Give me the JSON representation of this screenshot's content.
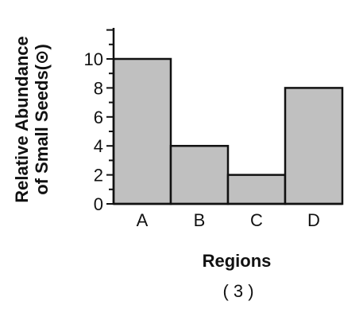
{
  "chart_data": {
    "type": "bar",
    "title": "",
    "xlabel": "Regions",
    "ylabel_lines": [
      "Relative Abundance",
      "of Small Seeds(⊙)"
    ],
    "categories": [
      "A",
      "B",
      "C",
      "D"
    ],
    "values": [
      10,
      4,
      2,
      8
    ],
    "ylim": [
      0,
      12
    ],
    "yticks": [
      0,
      2,
      4,
      6,
      8,
      10
    ],
    "minor_ticks": [
      12
    ],
    "grid": false,
    "legend": "none",
    "colors": {
      "bar_fill": "#c0c0c0",
      "bar_stroke": "#111111",
      "axis": "#111111"
    }
  },
  "footer": {
    "label": "( 3 )"
  }
}
